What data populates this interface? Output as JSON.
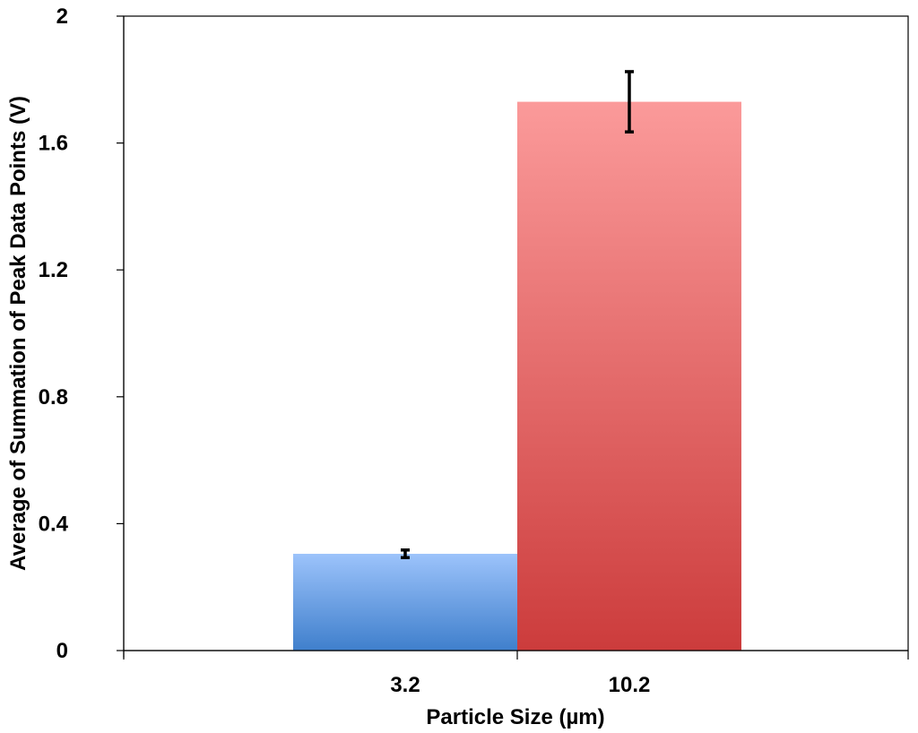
{
  "chart_data": {
    "type": "bar",
    "title": "",
    "xlabel": "Particle Size (µm)",
    "ylabel": "Average of Summation of Peak Data Points (V)",
    "categories": [
      "3.2",
      "10.2"
    ],
    "values": [
      0.305,
      1.73
    ],
    "error": [
      0.012,
      0.095
    ],
    "ylim": [
      0,
      2
    ],
    "yticks": [
      "0",
      "0.4",
      "0.8",
      "1.2",
      "1.6",
      "2"
    ],
    "grid": false,
    "legend": "none",
    "colors": {
      "bar_0_top": "#9cc3fb",
      "bar_0_bottom": "#3f7fcc",
      "bar_1_top": "#fb9a9a",
      "bar_1_bottom": "#cc3c3c"
    }
  }
}
